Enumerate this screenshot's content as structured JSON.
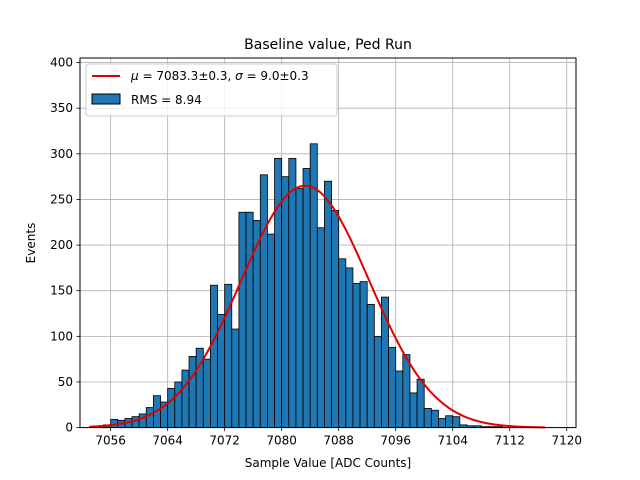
{
  "chart_data": {
    "type": "bar",
    "title": "Baseline value, Ped Run",
    "xlabel": "Sample Value [ADC Counts]",
    "ylabel": "Events",
    "xlim": [
      7051.7,
      7121.3
    ],
    "ylim": [
      0,
      405
    ],
    "xticks": [
      7056,
      7064,
      7072,
      7080,
      7088,
      7096,
      7104,
      7112,
      7120
    ],
    "yticks": [
      0,
      50,
      100,
      150,
      200,
      250,
      300,
      350,
      400
    ],
    "grid": true,
    "bin_width": 1,
    "bins_start": [
      7052,
      7053,
      7054,
      7055,
      7056,
      7057,
      7058,
      7059,
      7060,
      7061,
      7062,
      7063,
      7064,
      7065,
      7066,
      7067,
      7068,
      7069,
      7070,
      7071,
      7072,
      7073,
      7074,
      7075,
      7076,
      7077,
      7078,
      7079,
      7080,
      7081,
      7082,
      7083,
      7084,
      7085,
      7086,
      7087,
      7088,
      7089,
      7090,
      7091,
      7092,
      7093,
      7094,
      7095,
      7096,
      7097,
      7098,
      7099,
      7100,
      7101,
      7102,
      7103,
      7104,
      7105,
      7106,
      7107,
      7108,
      7109,
      7110,
      7111
    ],
    "values": [
      0,
      0,
      0,
      3,
      9,
      8,
      10,
      12,
      15,
      22,
      35,
      28,
      43,
      50,
      63,
      78,
      87,
      75,
      156,
      124,
      157,
      108,
      236,
      236,
      227,
      277,
      212,
      295,
      275,
      295,
      262,
      284,
      311,
      219,
      270,
      238,
      185,
      175,
      158,
      160,
      135,
      100,
      143,
      88,
      62,
      80,
      38,
      53,
      21,
      19,
      10,
      13,
      12,
      3,
      2,
      2,
      1,
      1,
      1,
      0
    ],
    "series": [
      {
        "name": "RMS = 8.94",
        "kind": "histogram",
        "color": "#1f77b4"
      },
      {
        "name": "$\\mu=7083.3\\pm0.3$, $\\sigma=9.0\\pm0.3$",
        "kind": "gaussian-fit",
        "color": "#e00000",
        "mu": 7083.3,
        "sigma": 9.0,
        "amplitude": 265,
        "x_range": [
          7053,
          7117
        ]
      }
    ],
    "legend": {
      "placement": "top-left",
      "fit_label_parts": [
        "μ",
        " = 7083.3±0.3, ",
        "σ",
        " = 9.0±0.3"
      ],
      "hist_label": "RMS = 8.94"
    }
  }
}
